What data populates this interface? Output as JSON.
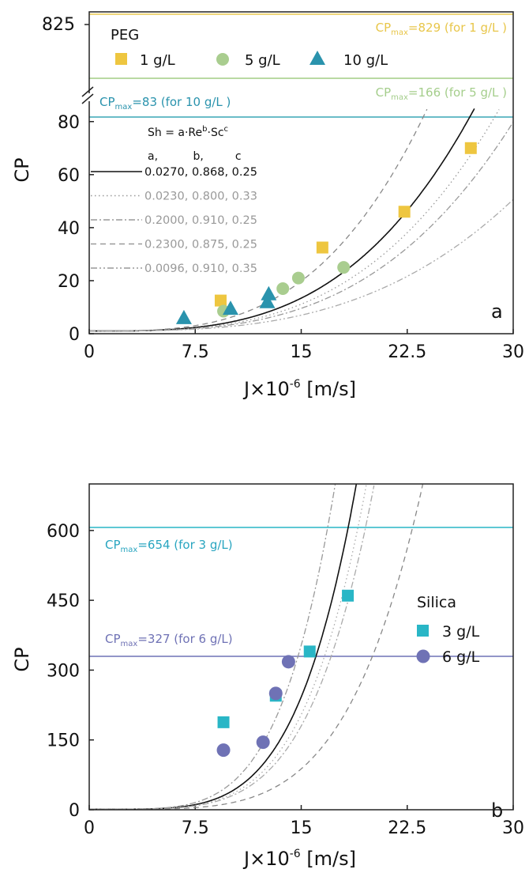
{
  "chart_data": [
    {
      "type": "scatter",
      "panel_label": "a",
      "xlabel": "J×10⁻⁶ [m/s]",
      "ylabel": "CP",
      "xlim": [
        0,
        30
      ],
      "ylim": [
        0,
        85
      ],
      "ylim_upper_inset": [
        825,
        825
      ],
      "y_axis_break": true,
      "x_ticks": [
        "0",
        "7.5",
        "15",
        "22.5",
        "30"
      ],
      "x_tick_values": [
        0,
        7.5,
        15,
        22.5,
        30
      ],
      "y_ticks": [
        "0",
        "20",
        "40",
        "60",
        "80"
      ],
      "y_tick_values": [
        0,
        20,
        40,
        60,
        80
      ],
      "y_tick_upper": "825",
      "legend": {
        "title": "PEG",
        "placement": "top",
        "entries": [
          "1 g/L",
          "5 g/L",
          "10 g/L"
        ]
      },
      "correlation_legend": {
        "equation": "Sh = a·Re^b·Sc^c",
        "eq_main": "Sh = a·Re",
        "eq_b": "b",
        "eq_mid": "·Sc",
        "eq_c": "c",
        "header": "a,          b,         c",
        "rows": [
          {
            "label": "0.0270, 0.868, 0.25",
            "style": "solid",
            "a": 0.027,
            "b": 0.868,
            "c": 0.25
          },
          {
            "label": "0.0230, 0.800, 0.33",
            "style": "dotted",
            "a": 0.023,
            "b": 0.8,
            "c": 0.33
          },
          {
            "label": "0.2000, 0.910, 0.25",
            "style": "dashdot",
            "a": 0.2,
            "b": 0.91,
            "c": 0.25
          },
          {
            "label": "0.2300, 0.875, 0.25",
            "style": "dashed",
            "a": 0.23,
            "b": 0.875,
            "c": 0.25
          },
          {
            "label": "0.0096, 0.910, 0.35",
            "style": "dashdotdot",
            "a": 0.0096,
            "b": 0.91,
            "c": 0.35
          }
        ]
      },
      "series": [
        {
          "name": "1 g/L",
          "marker": "square",
          "color": "#eec640",
          "points": [
            [
              9.3,
              12.5
            ],
            [
              16.5,
              32.5
            ],
            [
              22.3,
              46
            ],
            [
              27,
              70
            ]
          ]
        },
        {
          "name": "5 g/L",
          "marker": "circle",
          "color": "#a9cd8f",
          "points": [
            [
              9.5,
              8.5
            ],
            [
              13.7,
              17
            ],
            [
              14.8,
              21
            ],
            [
              18,
              25
            ]
          ]
        },
        {
          "name": "10 g/L",
          "marker": "triangle",
          "color": "#2a93ad",
          "points": [
            [
              6.7,
              6
            ],
            [
              10,
              9.5
            ],
            [
              12.6,
              12
            ],
            [
              12.7,
              15
            ]
          ]
        }
      ],
      "model_curves": [
        {
          "style": "solid",
          "color": "#111111",
          "k": 0.9555,
          "n": 3.2
        },
        {
          "style": "dashed",
          "color": "#888888",
          "k": 1.45,
          "n": 3.2
        },
        {
          "style": "dotted",
          "color": "#999999",
          "k": 0.78,
          "n": 3.2
        },
        {
          "style": "dashdot",
          "color": "#999999",
          "k": 0.66,
          "n": 3.2
        },
        {
          "style": "dashdotdot",
          "color": "#aaaaaa",
          "k": 0.49,
          "n": 3.05
        }
      ],
      "reference_lines": [
        {
          "label_pre": "CP",
          "label_sub": "max",
          "label_post": "=829 (for 1 g/L )",
          "color": "#f0d67a",
          "value": 829,
          "y_in_break_region": 829
        },
        {
          "label_pre": "CP",
          "label_sub": "max",
          "label_post": "=166 (for 5 g/L )",
          "color": "#b9d9a3",
          "value": 166,
          "y_in_break_region": 166
        },
        {
          "label_pre": "CP",
          "label_sub": "max",
          "label_post": "=83 (for 10 g/L )",
          "color": "#3aa6b5",
          "value": 83
        }
      ]
    },
    {
      "type": "scatter",
      "panel_label": "b",
      "xlabel": "J×10⁻⁶ [m/s]",
      "ylabel": "CP",
      "xlim": [
        0,
        30
      ],
      "ylim": [
        0,
        700
      ],
      "x_ticks": [
        "0",
        "7.5",
        "15",
        "22.5",
        "30"
      ],
      "x_tick_values": [
        0,
        7.5,
        15,
        22.5,
        30
      ],
      "y_ticks": [
        "0",
        "150",
        "300",
        "450",
        "600"
      ],
      "y_tick_values": [
        0,
        150,
        300,
        450,
        600
      ],
      "legend": {
        "title": "Silica",
        "placement": "right",
        "entries": [
          "3 g/L",
          "6 g/L"
        ]
      },
      "series": [
        {
          "name": "3 g/L",
          "marker": "square",
          "color": "#29b6c6",
          "points": [
            [
              9.5,
              188
            ],
            [
              13.2,
              245
            ],
            [
              15.6,
              340
            ],
            [
              18.3,
              460
            ]
          ]
        },
        {
          "name": "6 g/L",
          "marker": "circle",
          "color": "#6f72b5",
          "points": [
            [
              9.5,
              128
            ],
            [
              12.3,
              145
            ],
            [
              13.2,
              250
            ],
            [
              14.1,
              318
            ]
          ]
        }
      ],
      "model_curves": [
        {
          "style": "solid",
          "color": "#111111",
          "k": 8.9,
          "n": 4.6
        },
        {
          "style": "dashdot",
          "color": "#999999",
          "k": 13.0,
          "n": 4.6
        },
        {
          "style": "dotted",
          "color": "#aaaaaa",
          "k": 7.5,
          "n": 4.6
        },
        {
          "style": "dashdot",
          "color": "#aaaaaa",
          "k": 6.6,
          "n": 4.6
        },
        {
          "style": "dashed",
          "color": "#888888",
          "k": 3.2,
          "n": 4.6
        }
      ],
      "reference_lines": [
        {
          "label_pre": "CP",
          "label_sub": "max",
          "label_post": "=654 (for 3 g/L)",
          "color": "#29b6c6",
          "value": 654
        },
        {
          "label_pre": "CP",
          "label_sub": "max",
          "label_post": "=327 (for 6 g/L)",
          "color": "#6f72b5",
          "value": 327
        }
      ]
    }
  ]
}
